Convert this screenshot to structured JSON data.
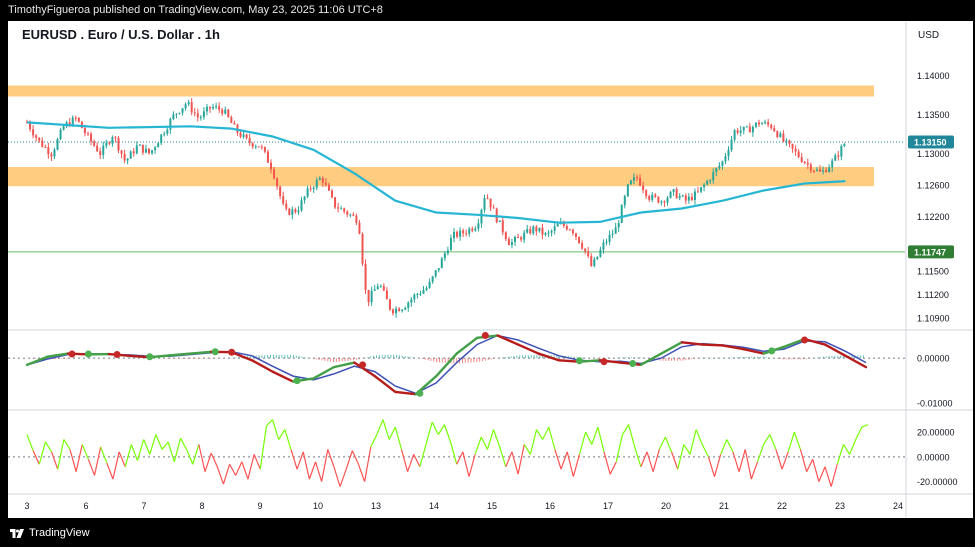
{
  "header": {
    "published_by": "TimothyFigueroa published on TradingView.com, May 23, 2025 11:06 UTC+8"
  },
  "symbol": {
    "title": "EURUSD . Euro / U.S. Dollar . 1h",
    "currency": "USD"
  },
  "footer": {
    "brand": "TradingView"
  },
  "colors": {
    "up": "#26a69a",
    "down": "#ef5350",
    "ma": "#26b6d4",
    "zone": "#ffcc80",
    "level_line": "#66bb6a",
    "price_badge": "#20879a",
    "support_badge": "#2e7d32",
    "oscillator_green": "#43a047",
    "oscillator_red": "#b71c1c",
    "oscillator_blue": "#3f51b5",
    "rsi_green": "#76ff03",
    "rsi_red": "#ff5252"
  },
  "chart_data": [
    {
      "type": "candlestick",
      "pane": "price",
      "x_unit": "date",
      "x_tick_labels": [
        "3",
        "6",
        "7",
        "8",
        "9",
        "10",
        "13",
        "14",
        "15",
        "16",
        "17",
        "20",
        "21",
        "22",
        "23",
        "24"
      ],
      "y_tick_labels": [
        "1.14000",
        "1.13500",
        "1.13000",
        "1.12600",
        "1.12200",
        "1.11500",
        "1.11200",
        "1.10900"
      ],
      "ylim": [
        1.1075,
        1.144
      ],
      "last_price": "1.13150",
      "level_label": "1.11747",
      "level_value": 1.11747,
      "resistance_zone": [
        1.1373,
        1.1387
      ],
      "support_zone": [
        1.127,
        1.1283
      ],
      "price_path": [
        [
          3.0,
          1.134
        ],
        [
          3.3,
          1.1315
        ],
        [
          3.6,
          1.13
        ],
        [
          3.9,
          1.1335
        ],
        [
          4.2,
          1.1345
        ],
        [
          4.5,
          1.132
        ],
        [
          4.8,
          1.13
        ],
        [
          5.1,
          1.1325
        ],
        [
          5.4,
          1.129
        ],
        [
          5.7,
          1.131
        ],
        [
          6.0,
          1.13
        ],
        [
          6.3,
          1.1325
        ],
        [
          6.6,
          1.135
        ],
        [
          6.9,
          1.1365
        ],
        [
          7.2,
          1.1345
        ],
        [
          7.5,
          1.136
        ],
        [
          7.8,
          1.1355
        ],
        [
          8.1,
          1.133
        ],
        [
          8.4,
          1.1315
        ],
        [
          8.7,
          1.131
        ],
        [
          9.0,
          1.128
        ],
        [
          9.3,
          1.1225
        ],
        [
          9.6,
          1.1228
        ],
        [
          9.9,
          1.1255
        ],
        [
          10.2,
          1.127
        ],
        [
          10.5,
          1.1235
        ],
        [
          10.8,
          1.1225
        ],
        [
          11.1,
          1.1215
        ],
        [
          11.3,
          1.111
        ],
        [
          11.6,
          1.1135
        ],
        [
          11.9,
          1.11
        ],
        [
          12.2,
          1.1105
        ],
        [
          12.5,
          1.112
        ],
        [
          12.8,
          1.113
        ],
        [
          13.1,
          1.116
        ],
        [
          13.4,
          1.1195
        ],
        [
          13.7,
          1.12
        ],
        [
          14.0,
          1.121
        ],
        [
          14.2,
          1.125
        ],
        [
          14.5,
          1.1215
        ],
        [
          14.8,
          1.1185
        ],
        [
          15.1,
          1.1195
        ],
        [
          15.4,
          1.1205
        ],
        [
          15.7,
          1.1195
        ],
        [
          16.0,
          1.121
        ],
        [
          16.3,
          1.1205
        ],
        [
          16.6,
          1.118
        ],
        [
          16.8,
          1.1155
        ],
        [
          17.1,
          1.1185
        ],
        [
          17.4,
          1.1205
        ],
        [
          17.7,
          1.126
        ],
        [
          17.9,
          1.127
        ],
        [
          18.2,
          1.1245
        ],
        [
          18.5,
          1.124
        ],
        [
          18.8,
          1.125
        ],
        [
          19.1,
          1.124
        ],
        [
          19.4,
          1.125
        ],
        [
          19.7,
          1.127
        ],
        [
          20.0,
          1.129
        ],
        [
          20.3,
          1.133
        ],
        [
          20.6,
          1.133
        ],
        [
          20.9,
          1.134
        ],
        [
          21.2,
          1.1335
        ],
        [
          21.5,
          1.1315
        ],
        [
          21.8,
          1.13
        ],
        [
          22.1,
          1.1285
        ],
        [
          22.4,
          1.1275
        ],
        [
          22.7,
          1.129
        ],
        [
          23.0,
          1.1315
        ]
      ],
      "ma_path": [
        [
          3.0,
          1.134
        ],
        [
          5.0,
          1.1333
        ],
        [
          7.0,
          1.1335
        ],
        [
          8.0,
          1.1332
        ],
        [
          9.0,
          1.1322
        ],
        [
          10.0,
          1.1305
        ],
        [
          11.0,
          1.1275
        ],
        [
          12.0,
          1.124
        ],
        [
          13.0,
          1.1225
        ],
        [
          14.0,
          1.1222
        ],
        [
          15.0,
          1.1218
        ],
        [
          16.0,
          1.1212
        ],
        [
          17.0,
          1.1213
        ],
        [
          18.0,
          1.1225
        ],
        [
          19.0,
          1.123
        ],
        [
          20.0,
          1.124
        ],
        [
          21.0,
          1.1253
        ],
        [
          22.0,
          1.1262
        ],
        [
          23.0,
          1.1265
        ]
      ]
    },
    {
      "type": "line",
      "pane": "oscillator",
      "y_tick_labels": [
        "0.00000",
        "-0.01000"
      ],
      "ylim": [
        -0.0115,
        0.006
      ],
      "signal": [
        [
          3.0,
          -0.0015
        ],
        [
          3.5,
          0.0003
        ],
        [
          4.0,
          0.001
        ],
        [
          4.5,
          0.0008
        ],
        [
          5.0,
          0.0009
        ],
        [
          5.5,
          0.0005
        ],
        [
          6.0,
          0.0002
        ],
        [
          6.5,
          0.0006
        ],
        [
          7.0,
          0.001
        ],
        [
          7.5,
          0.0014
        ],
        [
          8.0,
          0.0013
        ],
        [
          8.5,
          -0.0005
        ],
        [
          9.0,
          -0.003
        ],
        [
          9.5,
          -0.0052
        ],
        [
          10.0,
          -0.0045
        ],
        [
          10.5,
          -0.002
        ],
        [
          11.0,
          -0.001
        ],
        [
          11.5,
          -0.004
        ],
        [
          12.0,
          -0.0075
        ],
        [
          12.5,
          -0.008
        ],
        [
          13.0,
          -0.004
        ],
        [
          13.5,
          0.001
        ],
        [
          14.0,
          0.0045
        ],
        [
          14.5,
          0.005
        ],
        [
          15.0,
          0.003
        ],
        [
          15.5,
          0.001
        ],
        [
          16.0,
          -0.0005
        ],
        [
          16.5,
          -0.0008
        ],
        [
          17.0,
          -0.0005
        ],
        [
          17.5,
          -0.001
        ],
        [
          18.0,
          -0.0015
        ],
        [
          18.5,
          0.001
        ],
        [
          19.0,
          0.0035
        ],
        [
          19.5,
          0.003
        ],
        [
          20.0,
          0.0028
        ],
        [
          20.5,
          0.002
        ],
        [
          21.0,
          0.001
        ],
        [
          21.5,
          0.0025
        ],
        [
          22.0,
          0.0042
        ],
        [
          22.5,
          0.003
        ],
        [
          23.0,
          0.0005
        ],
        [
          23.5,
          -0.002
        ]
      ],
      "macd": [
        [
          3.0,
          -0.0015
        ],
        [
          3.5,
          -0.0002
        ],
        [
          4.0,
          0.0008
        ],
        [
          4.5,
          0.001
        ],
        [
          5.0,
          0.0008
        ],
        [
          5.5,
          0.0007
        ],
        [
          6.0,
          0.0004
        ],
        [
          6.5,
          0.0004
        ],
        [
          7.0,
          0.0008
        ],
        [
          7.5,
          0.0012
        ],
        [
          8.0,
          0.0014
        ],
        [
          8.5,
          0.0005
        ],
        [
          9.0,
          -0.0018
        ],
        [
          9.5,
          -0.004
        ],
        [
          10.0,
          -0.0048
        ],
        [
          10.5,
          -0.0035
        ],
        [
          11.0,
          -0.0018
        ],
        [
          11.5,
          -0.003
        ],
        [
          12.0,
          -0.0062
        ],
        [
          12.5,
          -0.0078
        ],
        [
          13.0,
          -0.0055
        ],
        [
          13.5,
          -0.001
        ],
        [
          14.0,
          0.003
        ],
        [
          14.5,
          0.005
        ],
        [
          15.0,
          0.004
        ],
        [
          15.5,
          0.0022
        ],
        [
          16.0,
          0.0005
        ],
        [
          16.5,
          -0.0005
        ],
        [
          17.0,
          -0.0008
        ],
        [
          17.5,
          -0.0007
        ],
        [
          18.0,
          -0.0012
        ],
        [
          18.5,
          0.0
        ],
        [
          19.0,
          0.0025
        ],
        [
          19.5,
          0.0032
        ],
        [
          20.0,
          0.0029
        ],
        [
          20.5,
          0.0024
        ],
        [
          21.0,
          0.0015
        ],
        [
          21.5,
          0.002
        ],
        [
          22.0,
          0.0038
        ],
        [
          22.5,
          0.0036
        ],
        [
          23.0,
          0.0015
        ],
        [
          23.5,
          -0.001
        ]
      ],
      "markers": [
        [
          4.1,
          0.0009,
          "red"
        ],
        [
          4.5,
          0.0009,
          "green"
        ],
        [
          5.2,
          0.0008,
          "red"
        ],
        [
          6.0,
          0.0003,
          "green"
        ],
        [
          7.6,
          0.0014,
          "green"
        ],
        [
          8.0,
          0.0013,
          "red"
        ],
        [
          9.6,
          -0.005,
          "green"
        ],
        [
          11.2,
          -0.0015,
          "red"
        ],
        [
          12.6,
          -0.0078,
          "green"
        ],
        [
          14.2,
          0.005,
          "red"
        ],
        [
          16.5,
          -0.0006,
          "green"
        ],
        [
          17.1,
          -0.0008,
          "red"
        ],
        [
          17.8,
          -0.0012,
          "green"
        ],
        [
          21.2,
          0.0016,
          "green"
        ],
        [
          22.0,
          0.004,
          "red"
        ]
      ]
    },
    {
      "type": "line",
      "pane": "rsi",
      "y_tick_labels": [
        "20.00000",
        "0.00000",
        "-20.00000"
      ],
      "ylim": [
        -30,
        37
      ],
      "series": [
        [
          3.0,
          18
        ],
        [
          3.15,
          5
        ],
        [
          3.3,
          -6
        ],
        [
          3.45,
          12
        ],
        [
          3.6,
          4
        ],
        [
          3.75,
          -10
        ],
        [
          3.9,
          14
        ],
        [
          4.05,
          6
        ],
        [
          4.2,
          -12
        ],
        [
          4.35,
          10
        ],
        [
          4.5,
          -2
        ],
        [
          4.65,
          -15
        ],
        [
          4.8,
          8
        ],
        [
          4.95,
          -5
        ],
        [
          5.1,
          -18
        ],
        [
          5.25,
          4
        ],
        [
          5.4,
          -8
        ],
        [
          5.55,
          10
        ],
        [
          5.7,
          -3
        ],
        [
          5.85,
          14
        ],
        [
          6.0,
          2
        ],
        [
          6.15,
          18
        ],
        [
          6.3,
          6
        ],
        [
          6.45,
          12
        ],
        [
          6.6,
          -4
        ],
        [
          6.75,
          15
        ],
        [
          6.9,
          6
        ],
        [
          7.05,
          -6
        ],
        [
          7.2,
          10
        ],
        [
          7.35,
          -12
        ],
        [
          7.5,
          3
        ],
        [
          7.65,
          -8
        ],
        [
          7.8,
          -22
        ],
        [
          7.95,
          -6
        ],
        [
          8.1,
          -15
        ],
        [
          8.25,
          -4
        ],
        [
          8.4,
          -18
        ],
        [
          8.55,
          2
        ],
        [
          8.7,
          -10
        ],
        [
          8.85,
          25
        ],
        [
          9.0,
          30
        ],
        [
          9.15,
          14
        ],
        [
          9.3,
          22
        ],
        [
          9.45,
          6
        ],
        [
          9.6,
          -10
        ],
        [
          9.75,
          4
        ],
        [
          9.9,
          -18
        ],
        [
          10.05,
          -4
        ],
        [
          10.2,
          -20
        ],
        [
          10.35,
          6
        ],
        [
          10.5,
          -8
        ],
        [
          10.65,
          -24
        ],
        [
          10.8,
          -10
        ],
        [
          10.95,
          5
        ],
        [
          11.1,
          -6
        ],
        [
          11.25,
          -20
        ],
        [
          11.4,
          8
        ],
        [
          11.55,
          18
        ],
        [
          11.7,
          30
        ],
        [
          11.85,
          14
        ],
        [
          12.0,
          24
        ],
        [
          12.15,
          6
        ],
        [
          12.3,
          -12
        ],
        [
          12.45,
          2
        ],
        [
          12.6,
          -8
        ],
        [
          12.75,
          10
        ],
        [
          12.9,
          28
        ],
        [
          13.05,
          18
        ],
        [
          13.2,
          26
        ],
        [
          13.35,
          12
        ],
        [
          13.5,
          -6
        ],
        [
          13.65,
          4
        ],
        [
          13.8,
          -16
        ],
        [
          13.95,
          2
        ],
        [
          14.1,
          16
        ],
        [
          14.25,
          6
        ],
        [
          14.4,
          22
        ],
        [
          14.55,
          8
        ],
        [
          14.7,
          -8
        ],
        [
          14.85,
          4
        ],
        [
          15.0,
          -14
        ],
        [
          15.15,
          10
        ],
        [
          15.3,
          2
        ],
        [
          15.45,
          22
        ],
        [
          15.6,
          14
        ],
        [
          15.75,
          24
        ],
        [
          15.9,
          6
        ],
        [
          16.05,
          -10
        ],
        [
          16.2,
          4
        ],
        [
          16.35,
          -16
        ],
        [
          16.5,
          2
        ],
        [
          16.65,
          20
        ],
        [
          16.8,
          10
        ],
        [
          16.95,
          24
        ],
        [
          17.1,
          4
        ],
        [
          17.25,
          -14
        ],
        [
          17.4,
          -4
        ],
        [
          17.55,
          18
        ],
        [
          17.7,
          26
        ],
        [
          17.85,
          8
        ],
        [
          18.0,
          -8
        ],
        [
          18.15,
          4
        ],
        [
          18.3,
          -12
        ],
        [
          18.45,
          6
        ],
        [
          18.6,
          16
        ],
        [
          18.75,
          4
        ],
        [
          18.9,
          -10
        ],
        [
          19.05,
          10
        ],
        [
          19.2,
          2
        ],
        [
          19.35,
          22
        ],
        [
          19.5,
          10
        ],
        [
          19.65,
          0
        ],
        [
          19.8,
          -16
        ],
        [
          19.95,
          2
        ],
        [
          20.1,
          14
        ],
        [
          20.25,
          4
        ],
        [
          20.4,
          -12
        ],
        [
          20.55,
          6
        ],
        [
          20.7,
          -18
        ],
        [
          20.85,
          -4
        ],
        [
          21.0,
          10
        ],
        [
          21.15,
          18
        ],
        [
          21.3,
          6
        ],
        [
          21.45,
          -10
        ],
        [
          21.6,
          4
        ],
        [
          21.75,
          20
        ],
        [
          21.9,
          6
        ],
        [
          22.05,
          -12
        ],
        [
          22.2,
          -2
        ],
        [
          22.35,
          -20
        ],
        [
          22.5,
          -8
        ],
        [
          22.65,
          -24
        ],
        [
          22.8,
          -6
        ],
        [
          22.95,
          10
        ],
        [
          23.1,
          2
        ],
        [
          23.25,
          14
        ],
        [
          23.4,
          24
        ],
        [
          23.55,
          26
        ]
      ]
    }
  ]
}
